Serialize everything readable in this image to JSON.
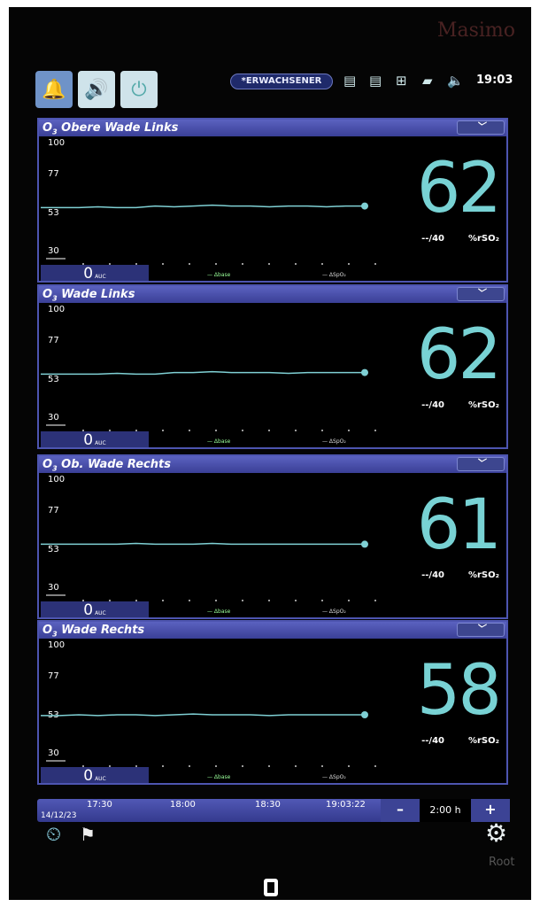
{
  "brand": "Masimo",
  "status": {
    "mode": "*ERWACHSENER",
    "time": "19:03"
  },
  "icons": [
    "bell-icon",
    "speaker-icon",
    "power-icon"
  ],
  "status_icons": [
    "sensor-1-icon",
    "sensor-2-icon",
    "layout-grid-icon",
    "battery-icon",
    "volume-icon"
  ],
  "axis": {
    "ticks": [
      "100",
      "77",
      "53",
      "30"
    ]
  },
  "panels": [
    {
      "title": "Obere Wade Links",
      "prefix": "O",
      "sub": "3",
      "value": "62",
      "limit": "--/40",
      "unit": "%rSO₂",
      "auc": "0",
      "auc_label": "AUC",
      "leg1": "Δbase",
      "leg2": "ΔSpO₂",
      "trend": [
        61,
        61,
        61,
        61.5,
        61,
        61,
        62,
        61.5,
        62,
        62.5,
        62,
        62,
        61.5,
        62,
        62,
        61.5,
        62,
        62
      ]
    },
    {
      "title": "Wade Links",
      "prefix": "O",
      "sub": "3",
      "value": "62",
      "limit": "--/40",
      "unit": "%rSO₂",
      "auc": "0",
      "auc_label": "AUC",
      "leg1": "Δbase",
      "leg2": "ΔSpO₂",
      "trend": [
        61,
        61,
        61,
        61,
        61.5,
        61,
        61,
        62,
        62,
        62.5,
        62,
        62,
        62,
        61.5,
        62,
        62,
        62,
        62
      ]
    },
    {
      "title": "Ob. Wade Rechts",
      "prefix": "O",
      "sub": "3",
      "value": "61",
      "limit": "--/40",
      "unit": "%rSO₂",
      "auc": "0",
      "auc_label": "AUC",
      "leg1": "Δbase",
      "leg2": "ΔSpO₂",
      "trend": [
        61,
        61,
        61,
        61,
        61,
        61.5,
        61,
        61,
        61,
        61.5,
        61,
        61,
        61,
        61,
        61,
        61,
        61,
        61
      ]
    },
    {
      "title": "Wade Rechts",
      "prefix": "O",
      "sub": "3",
      "value": "58",
      "limit": "--/40",
      "unit": "%rSO₂",
      "auc": "0",
      "auc_label": "AUC",
      "leg1": "Δbase",
      "leg2": "ΔSpO₂",
      "trend": [
        57.5,
        57.5,
        58,
        57.5,
        58,
        58,
        57.5,
        58,
        58.5,
        58,
        58,
        58,
        57.5,
        58,
        58,
        58,
        58,
        58
      ]
    }
  ],
  "timeline": {
    "ticks": [
      "17:30",
      "18:00",
      "18:30",
      "19:03:22"
    ],
    "date": "14/12/23",
    "minus": "–",
    "span": "2:00 h",
    "plus": "+"
  },
  "footer": {
    "user": "Root"
  }
}
